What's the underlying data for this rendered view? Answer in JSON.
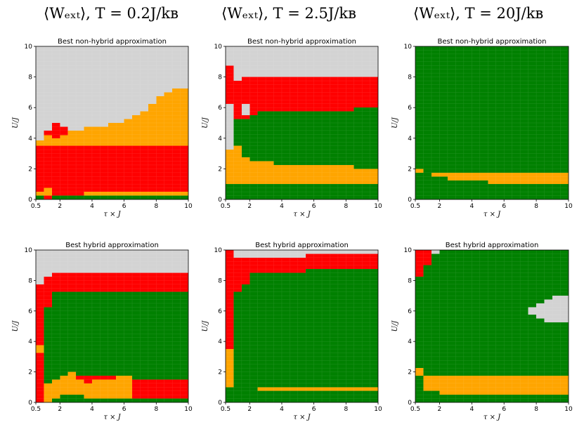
{
  "colors": {
    "grey": "#d3d3d3",
    "orange": "#ffa500",
    "red": "#ff0000",
    "green": "#008000"
  },
  "column_titles": [
    "⟨Wₑₓₜ⟩, T = 0.2J/kʙ",
    "⟨Wₑₓₜ⟩, T = 2.5J/kʙ",
    "⟨Wₑₓₜ⟩, T = 20J/kʙ"
  ],
  "chart_data": [
    {
      "type": "heatmap",
      "title": "Best non-hybrid approximation",
      "xlabel": "τ × J",
      "ylabel": "U/J",
      "xlim": [
        0.5,
        10
      ],
      "ylim": [
        0,
        10
      ],
      "xticks": [
        "0.5",
        "2",
        "4",
        "6",
        "8",
        "10"
      ],
      "yticks": [
        "0",
        "2",
        "4",
        "6",
        "8",
        "10"
      ],
      "regions": [
        {
          "c": "grey",
          "x": [
            0.5,
            10
          ],
          "y": [
            0,
            10
          ]
        },
        {
          "c": "orange",
          "x": [
            0.5,
            10
          ],
          "y": [
            3.5,
            3.7
          ]
        },
        {
          "c": "orange",
          "x": [
            0.5,
            1.0
          ],
          "y": [
            3.7,
            3.85
          ]
        },
        {
          "c": "orange",
          "x": [
            1.0,
            1.5
          ],
          "y": [
            3.7,
            4.2
          ]
        },
        {
          "c": "orange",
          "x": [
            1.5,
            2.0
          ],
          "y": [
            3.7,
            4.0
          ]
        },
        {
          "c": "orange",
          "x": [
            2.0,
            2.5
          ],
          "y": [
            3.7,
            4.2
          ]
        },
        {
          "c": "orange",
          "x": [
            2.5,
            3.5
          ],
          "y": [
            3.7,
            4.5
          ]
        },
        {
          "c": "orange",
          "x": [
            3.5,
            5.0
          ],
          "y": [
            3.7,
            4.75
          ]
        },
        {
          "c": "orange",
          "x": [
            5.0,
            6.0
          ],
          "y": [
            3.7,
            5.0
          ]
        },
        {
          "c": "orange",
          "x": [
            6.0,
            6.5
          ],
          "y": [
            3.7,
            5.25
          ]
        },
        {
          "c": "orange",
          "x": [
            6.5,
            7.0
          ],
          "y": [
            3.7,
            5.5
          ]
        },
        {
          "c": "orange",
          "x": [
            7.0,
            7.5
          ],
          "y": [
            3.7,
            5.75
          ]
        },
        {
          "c": "orange",
          "x": [
            7.5,
            8.0
          ],
          "y": [
            3.7,
            6.25
          ]
        },
        {
          "c": "orange",
          "x": [
            8.0,
            8.5
          ],
          "y": [
            3.7,
            6.75
          ]
        },
        {
          "c": "orange",
          "x": [
            8.5,
            9.0
          ],
          "y": [
            3.7,
            7.0
          ]
        },
        {
          "c": "orange",
          "x": [
            9.0,
            10
          ],
          "y": [
            3.7,
            7.25
          ]
        },
        {
          "c": "red",
          "x": [
            1.5,
            2.0
          ],
          "y": [
            4.0,
            5.0
          ]
        },
        {
          "c": "red",
          "x": [
            2.0,
            2.5
          ],
          "y": [
            4.2,
            4.75
          ]
        },
        {
          "c": "red",
          "x": [
            1.0,
            1.5
          ],
          "y": [
            4.2,
            4.5
          ]
        },
        {
          "c": "red",
          "x": [
            0.5,
            10
          ],
          "y": [
            0.5,
            3.5
          ]
        },
        {
          "c": "red",
          "x": [
            0.5,
            10
          ],
          "y": [
            0,
            0.5
          ]
        },
        {
          "c": "orange",
          "x": [
            0.5,
            1.0
          ],
          "y": [
            0.25,
            0.5
          ]
        },
        {
          "c": "orange",
          "x": [
            1.0,
            1.5
          ],
          "y": [
            0.25,
            0.75
          ]
        },
        {
          "c": "orange",
          "x": [
            3.5,
            10
          ],
          "y": [
            0.25,
            0.5
          ]
        },
        {
          "c": "green",
          "x": [
            0.5,
            1.0
          ],
          "y": [
            0,
            0.25
          ]
        },
        {
          "c": "green",
          "x": [
            1.5,
            10
          ],
          "y": [
            0,
            0.25
          ]
        }
      ]
    },
    {
      "type": "heatmap",
      "title": "Best non-hybrid approximation",
      "xlabel": "τ × J",
      "ylabel": "U/J",
      "xlim": [
        0.5,
        10
      ],
      "ylim": [
        0,
        10
      ],
      "xticks": [
        "0.5",
        "2",
        "4",
        "6",
        "8",
        "10"
      ],
      "yticks": [
        "0",
        "2",
        "4",
        "6",
        "8",
        "10"
      ],
      "regions": [
        {
          "c": "grey",
          "x": [
            0.5,
            10
          ],
          "y": [
            0,
            10
          ]
        },
        {
          "c": "red",
          "x": [
            0.5,
            1.0
          ],
          "y": [
            6.25,
            8.75
          ]
        },
        {
          "c": "red",
          "x": [
            1.0,
            1.5
          ],
          "y": [
            5.25,
            7.75
          ]
        },
        {
          "c": "red",
          "x": [
            1.5,
            2.0
          ],
          "y": [
            6.25,
            8.0
          ]
        },
        {
          "c": "red",
          "x": [
            2.0,
            10
          ],
          "y": [
            5.75,
            8.0
          ]
        },
        {
          "c": "red",
          "x": [
            2.0,
            2.5
          ],
          "y": [
            5.5,
            5.75
          ]
        },
        {
          "c": "red",
          "x": [
            1.5,
            2.0
          ],
          "y": [
            5.25,
            5.5
          ]
        },
        {
          "c": "red",
          "x": [
            8.5,
            10
          ],
          "y": [
            5.5,
            6.0
          ]
        },
        {
          "c": "orange",
          "x": [
            0.5,
            1.0
          ],
          "y": [
            1.0,
            3.25
          ]
        },
        {
          "c": "orange",
          "x": [
            1.0,
            1.5
          ],
          "y": [
            1.0,
            3.5
          ]
        },
        {
          "c": "orange",
          "x": [
            1.5,
            2.0
          ],
          "y": [
            1.0,
            2.75
          ]
        },
        {
          "c": "orange",
          "x": [
            2.0,
            3.5
          ],
          "y": [
            1.0,
            2.5
          ]
        },
        {
          "c": "orange",
          "x": [
            3.5,
            8.5
          ],
          "y": [
            1.0,
            2.25
          ]
        },
        {
          "c": "orange",
          "x": [
            8.5,
            10
          ],
          "y": [
            1.0,
            2.0
          ]
        },
        {
          "c": "green",
          "x": [
            0.5,
            10
          ],
          "y": [
            0,
            1.0
          ]
        },
        {
          "c": "green",
          "x": [
            1.0,
            1.5
          ],
          "y": [
            3.5,
            5.25
          ]
        },
        {
          "c": "green",
          "x": [
            1.5,
            2.0
          ],
          "y": [
            2.75,
            5.25
          ]
        },
        {
          "c": "green",
          "x": [
            2.0,
            2.5
          ],
          "y": [
            2.5,
            5.5
          ]
        },
        {
          "c": "green",
          "x": [
            2.5,
            3.5
          ],
          "y": [
            2.5,
            5.75
          ]
        },
        {
          "c": "green",
          "x": [
            3.5,
            8.5
          ],
          "y": [
            2.25,
            5.75
          ]
        },
        {
          "c": "green",
          "x": [
            8.5,
            10
          ],
          "y": [
            2.0,
            5.5
          ]
        },
        {
          "c": "green",
          "x": [
            8.5,
            10
          ],
          "y": [
            5.5,
            6.0
          ]
        }
      ]
    },
    {
      "type": "heatmap",
      "title": "Best non-hybrid approximation",
      "xlabel": "τ × J",
      "ylabel": "U/J",
      "xlim": [
        0.5,
        10
      ],
      "ylim": [
        0,
        10
      ],
      "xticks": [
        "0.5",
        "2",
        "4",
        "6",
        "8",
        "10"
      ],
      "yticks": [
        "0",
        "2",
        "4",
        "6",
        "8",
        "10"
      ],
      "regions": [
        {
          "c": "green",
          "x": [
            0.5,
            10
          ],
          "y": [
            0,
            10
          ]
        },
        {
          "c": "orange",
          "x": [
            0.5,
            1.0
          ],
          "y": [
            1.75,
            2.0
          ]
        },
        {
          "c": "orange",
          "x": [
            1.5,
            10
          ],
          "y": [
            1.5,
            1.75
          ]
        },
        {
          "c": "orange",
          "x": [
            2.5,
            10
          ],
          "y": [
            1.25,
            1.5
          ]
        },
        {
          "c": "orange",
          "x": [
            5.0,
            10
          ],
          "y": [
            1.0,
            1.25
          ]
        }
      ]
    },
    {
      "type": "heatmap",
      "title": "Best hybrid approximation",
      "xlabel": "τ × J",
      "ylabel": "U/J",
      "xlim": [
        0.5,
        10
      ],
      "ylim": [
        0,
        10
      ],
      "xticks": [
        "0.5",
        "2",
        "4",
        "6",
        "8",
        "10"
      ],
      "yticks": [
        "0",
        "2",
        "4",
        "6",
        "8",
        "10"
      ],
      "regions": [
        {
          "c": "grey",
          "x": [
            0.5,
            10
          ],
          "y": [
            0,
            10
          ]
        },
        {
          "c": "red",
          "x": [
            0.5,
            1.0
          ],
          "y": [
            0,
            7.75
          ]
        },
        {
          "c": "red",
          "x": [
            1.0,
            1.5
          ],
          "y": [
            0,
            8.25
          ]
        },
        {
          "c": "red",
          "x": [
            1.5,
            10
          ],
          "y": [
            0,
            8.5
          ]
        },
        {
          "c": "orange",
          "x": [
            0.5,
            1.0
          ],
          "y": [
            3.25,
            3.75
          ]
        },
        {
          "c": "green",
          "x": [
            1.0,
            1.5
          ],
          "y": [
            0,
            6.25
          ]
        },
        {
          "c": "green",
          "x": [
            1.5,
            10
          ],
          "y": [
            1.75,
            7.25
          ]
        },
        {
          "c": "green",
          "x": [
            1.5,
            2.0
          ],
          "y": [
            0,
            1.75
          ]
        },
        {
          "c": "orange",
          "x": [
            1.0,
            1.5
          ],
          "y": [
            0,
            1.25
          ]
        },
        {
          "c": "orange",
          "x": [
            1.5,
            2.0
          ],
          "y": [
            0.25,
            1.5
          ]
        },
        {
          "c": "orange",
          "x": [
            2.0,
            2.5
          ],
          "y": [
            0.25,
            1.75
          ]
        },
        {
          "c": "orange",
          "x": [
            2.5,
            3.0
          ],
          "y": [
            0.5,
            2.0
          ]
        },
        {
          "c": "orange",
          "x": [
            3.0,
            3.5
          ],
          "y": [
            0.5,
            1.5
          ]
        },
        {
          "c": "orange",
          "x": [
            3.5,
            4.0
          ],
          "y": [
            0.25,
            1.25
          ]
        },
        {
          "c": "orange",
          "x": [
            4.0,
            5.5
          ],
          "y": [
            0.25,
            1.5
          ]
        },
        {
          "c": "orange",
          "x": [
            5.5,
            6.5
          ],
          "y": [
            0.25,
            1.75
          ]
        },
        {
          "c": "green",
          "x": [
            1.5,
            10
          ],
          "y": [
            0,
            0.25
          ]
        },
        {
          "c": "green",
          "x": [
            2.0,
            3.5
          ],
          "y": [
            0.25,
            0.5
          ]
        },
        {
          "c": "green",
          "x": [
            6.5,
            10
          ],
          "y": [
            1.5,
            1.75
          ]
        }
      ]
    },
    {
      "type": "heatmap",
      "title": "Best hybrid approximation",
      "xlabel": "τ × J",
      "ylabel": "U/J",
      "xlim": [
        0.5,
        10
      ],
      "ylim": [
        0,
        10
      ],
      "xticks": [
        "0.5",
        "2",
        "4",
        "6",
        "8",
        "10"
      ],
      "yticks": [
        "0",
        "2",
        "4",
        "6",
        "8",
        "10"
      ],
      "regions": [
        {
          "c": "grey",
          "x": [
            0.5,
            10
          ],
          "y": [
            0,
            10
          ]
        },
        {
          "c": "red",
          "x": [
            0.5,
            1.0
          ],
          "y": [
            0,
            10
          ]
        },
        {
          "c": "red",
          "x": [
            1.0,
            5.5
          ],
          "y": [
            0,
            9.5
          ]
        },
        {
          "c": "red",
          "x": [
            5.5,
            10
          ],
          "y": [
            0,
            9.75
          ]
        },
        {
          "c": "orange",
          "x": [
            0.5,
            1.0
          ],
          "y": [
            1.0,
            3.5
          ]
        },
        {
          "c": "green",
          "x": [
            0.5,
            1.0
          ],
          "y": [
            0,
            1.0
          ]
        },
        {
          "c": "green",
          "x": [
            1.0,
            1.5
          ],
          "y": [
            0,
            7.25
          ]
        },
        {
          "c": "green",
          "x": [
            1.5,
            2.0
          ],
          "y": [
            0,
            7.75
          ]
        },
        {
          "c": "green",
          "x": [
            2.0,
            3.5
          ],
          "y": [
            0,
            8.5
          ]
        },
        {
          "c": "green",
          "x": [
            3.5,
            5.5
          ],
          "y": [
            0,
            8.5
          ]
        },
        {
          "c": "green",
          "x": [
            5.5,
            10
          ],
          "y": [
            0,
            8.75
          ]
        },
        {
          "c": "orange",
          "x": [
            2.5,
            10
          ],
          "y": [
            0.75,
            1.0
          ]
        }
      ]
    },
    {
      "type": "heatmap",
      "title": "Best hybrid approximation",
      "xlabel": "τ × J",
      "ylabel": "U/J",
      "xlim": [
        0.5,
        10
      ],
      "ylim": [
        0,
        10
      ],
      "xticks": [
        "0.5",
        "2",
        "4",
        "6",
        "8",
        "10"
      ],
      "yticks": [
        "0",
        "2",
        "4",
        "6",
        "8",
        "10"
      ],
      "regions": [
        {
          "c": "green",
          "x": [
            0.5,
            10
          ],
          "y": [
            0,
            10
          ]
        },
        {
          "c": "grey",
          "x": [
            0.5,
            1.0
          ],
          "y": [
            9.0,
            10
          ]
        },
        {
          "c": "red",
          "x": [
            0.5,
            1.0
          ],
          "y": [
            8.25,
            10
          ]
        },
        {
          "c": "red",
          "x": [
            1.0,
            1.5
          ],
          "y": [
            9.0,
            10
          ]
        },
        {
          "c": "red",
          "x": [
            1.5,
            2.0
          ],
          "y": [
            9.75,
            10
          ]
        },
        {
          "c": "grey",
          "x": [
            1.5,
            2.0
          ],
          "y": [
            9.75,
            10
          ]
        },
        {
          "c": "grey",
          "x": [
            7.5,
            8.0
          ],
          "y": [
            5.75,
            6.25
          ]
        },
        {
          "c": "grey",
          "x": [
            8.0,
            8.5
          ],
          "y": [
            5.5,
            6.5
          ]
        },
        {
          "c": "grey",
          "x": [
            8.5,
            9.0
          ],
          "y": [
            5.25,
            6.75
          ]
        },
        {
          "c": "grey",
          "x": [
            9.0,
            10
          ],
          "y": [
            5.25,
            7.0
          ]
        },
        {
          "c": "orange",
          "x": [
            0.5,
            1.0
          ],
          "y": [
            1.75,
            2.25
          ]
        },
        {
          "c": "orange",
          "x": [
            1.0,
            2.0
          ],
          "y": [
            0.75,
            1.75
          ]
        },
        {
          "c": "orange",
          "x": [
            2.0,
            10
          ],
          "y": [
            0.5,
            1.75
          ]
        }
      ]
    }
  ]
}
